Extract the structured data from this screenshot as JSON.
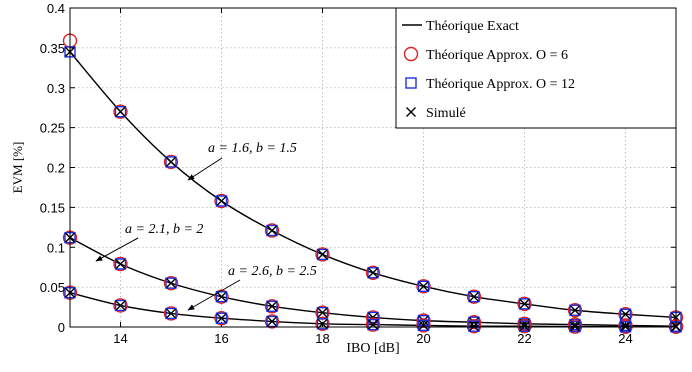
{
  "chart_data": {
    "type": "line",
    "xlabel": "IBO [dB]",
    "ylabel": "EVM [%]",
    "xlim": [
      13,
      25
    ],
    "ylim": [
      0,
      0.4
    ],
    "x_ticks": [
      14,
      16,
      18,
      20,
      22,
      24
    ],
    "y_ticks": [
      0,
      0.05,
      0.1,
      0.15,
      0.2,
      0.25,
      0.3,
      0.35,
      0.4
    ],
    "y_tick_labels": [
      "0",
      "0.05",
      "0.1",
      "0.15",
      "0.2",
      "0.25",
      "0.3",
      "0.35",
      "0.4"
    ],
    "grid": true,
    "legend_position": "top-right",
    "legend": [
      {
        "label": "Théorique Exact",
        "marker": "line"
      },
      {
        "label": "Théorique Approx. O = 6",
        "marker": "circle",
        "color": "#e02020"
      },
      {
        "label": "Théorique Approx. O = 12",
        "marker": "square",
        "color": "#2030e0"
      },
      {
        "label": "Simulé",
        "marker": "cross"
      }
    ],
    "x": [
      13,
      14,
      15,
      16,
      17,
      18,
      19,
      20,
      21,
      22,
      23,
      24,
      25
    ],
    "groups": [
      {
        "annotation": "a = 1.6, b = 1.5",
        "exact": [
          0.345,
          0.27,
          0.207,
          0.158,
          0.121,
          0.091,
          0.068,
          0.051,
          0.038,
          0.029,
          0.021,
          0.016,
          0.012
        ],
        "approx_o6": [
          0.359,
          0.27,
          0.207,
          0.158,
          0.121,
          0.091,
          0.068,
          0.051,
          0.038,
          0.029,
          0.021,
          0.016,
          0.012
        ],
        "approx_o12": [
          0.345,
          0.27,
          0.207,
          0.158,
          0.121,
          0.091,
          0.068,
          0.051,
          0.038,
          0.029,
          0.021,
          0.016,
          0.012
        ],
        "simulated": [
          0.345,
          0.27,
          0.207,
          0.158,
          0.121,
          0.091,
          0.068,
          0.051,
          0.038,
          0.029,
          0.021,
          0.016,
          0.012
        ]
      },
      {
        "annotation": "a = 2.1, b = 2",
        "exact": [
          0.112,
          0.079,
          0.055,
          0.038,
          0.026,
          0.018,
          0.012,
          0.008,
          0.006,
          0.004,
          0.003,
          0.002,
          0.001
        ],
        "approx_o6": [
          0.112,
          0.079,
          0.055,
          0.038,
          0.026,
          0.018,
          0.012,
          0.008,
          0.006,
          0.004,
          0.003,
          0.002,
          0.001
        ],
        "approx_o12": [
          0.112,
          0.079,
          0.055,
          0.038,
          0.026,
          0.018,
          0.012,
          0.008,
          0.006,
          0.004,
          0.003,
          0.002,
          0.001
        ],
        "simulated": [
          0.112,
          0.079,
          0.055,
          0.038,
          0.026,
          0.018,
          0.012,
          0.008,
          0.006,
          0.004,
          0.003,
          0.002,
          0.001
        ]
      },
      {
        "annotation": "a = 2.6, b = 2.5",
        "exact": [
          0.043,
          0.027,
          0.017,
          0.011,
          0.007,
          0.004,
          0.003,
          0.002,
          0.001,
          0.001,
          0.0005,
          0.0003,
          0.0002
        ],
        "approx_o6": [
          0.043,
          0.027,
          0.017,
          0.011,
          0.007,
          0.004,
          0.003,
          0.002,
          0.001,
          0.001,
          0.0005,
          0.0003,
          0.0002
        ],
        "approx_o12": [
          0.043,
          0.027,
          0.017,
          0.011,
          0.007,
          0.004,
          0.003,
          0.002,
          0.001,
          0.001,
          0.0005,
          0.0003,
          0.0002
        ],
        "simulated": [
          0.043,
          0.027,
          0.017,
          0.011,
          0.007,
          0.004,
          0.003,
          0.002,
          0.001,
          0.001,
          0.0005,
          0.0003,
          0.0002
        ]
      }
    ]
  }
}
